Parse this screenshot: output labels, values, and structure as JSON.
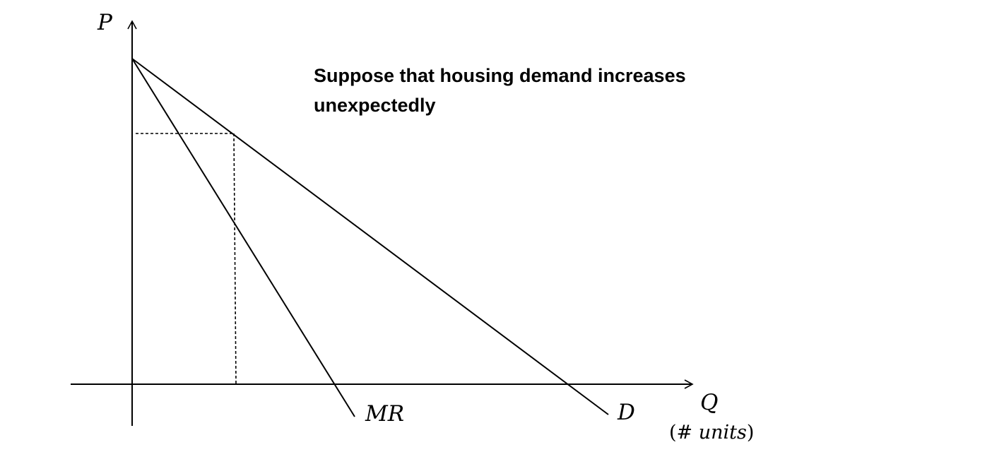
{
  "axes": {
    "y_label": "P",
    "x_label": "Q",
    "x_unit_open": "(# ",
    "x_unit_word": "units",
    "x_unit_close": ")"
  },
  "curves": {
    "demand_label": "D",
    "mr_label": "MR"
  },
  "annotation": {
    "text": "Suppose that housing demand increases unexpectedly"
  }
}
